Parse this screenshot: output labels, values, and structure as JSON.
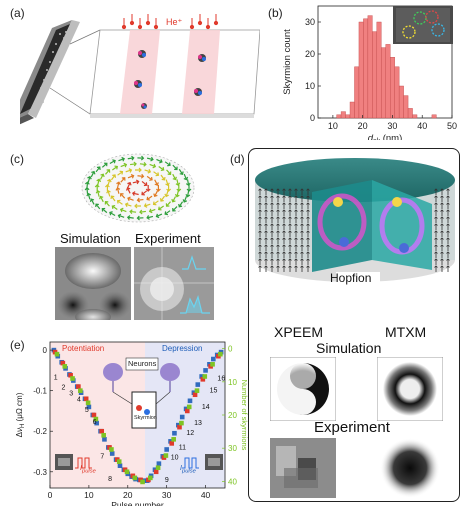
{
  "panels": {
    "a": "(a)",
    "b": "(b)",
    "c": "(c)",
    "d": "(d)",
    "e": "(e)"
  },
  "panel_a": {
    "ion_label": "He⁺"
  },
  "panel_c": {
    "simulation_label": "Simulation",
    "experiment_label": "Experiment"
  },
  "panel_d": {
    "hopfion_label": "Hopfion",
    "xpeem_label": "XPEEM",
    "mtxm_label": "MTXM",
    "simulation_label": "Simulation",
    "experiment_label": "Experiment"
  },
  "panel_e": {
    "potentiation_label": "Potentiation",
    "depression_label": "Depression",
    "neurons_label": "Neurons",
    "skyrmion_label": "Skyrmion",
    "ipulse_left": "I",
    "ipulse_right": "I",
    "ipulse_sub": "pulse",
    "point_labels_left": [
      "1",
      "2",
      "3",
      "4",
      "5",
      "6",
      "7",
      "8"
    ],
    "point_labels_right": [
      "9",
      "10",
      "11",
      "12",
      "13",
      "14",
      "15",
      "16"
    ]
  },
  "chart_data": [
    {
      "type": "bar",
      "xlabel": "d_sk (nm)",
      "ylabel": "Skyrmion count",
      "xlim": [
        5,
        50
      ],
      "ylim": [
        0,
        35
      ],
      "xticks": [
        "10",
        "20",
        "30",
        "40",
        "50"
      ],
      "yticks": [
        "0",
        "10",
        "20",
        "30"
      ],
      "bin_width": 1.5,
      "bins": [
        {
          "x": 12.0,
          "count": 1
        },
        {
          "x": 13.5,
          "count": 2
        },
        {
          "x": 15.0,
          "count": 1
        },
        {
          "x": 16.5,
          "count": 5
        },
        {
          "x": 18.0,
          "count": 16
        },
        {
          "x": 19.5,
          "count": 30
        },
        {
          "x": 21.0,
          "count": 31
        },
        {
          "x": 22.5,
          "count": 32
        },
        {
          "x": 24.0,
          "count": 27
        },
        {
          "x": 25.5,
          "count": 30
        },
        {
          "x": 27.0,
          "count": 22
        },
        {
          "x": 28.5,
          "count": 23
        },
        {
          "x": 30.0,
          "count": 19
        },
        {
          "x": 31.5,
          "count": 16
        },
        {
          "x": 33.0,
          "count": 10
        },
        {
          "x": 34.5,
          "count": 7
        },
        {
          "x": 36.0,
          "count": 3
        },
        {
          "x": 37.5,
          "count": 1
        },
        {
          "x": 44.0,
          "count": 1
        }
      ],
      "bar_color": "#f08080"
    },
    {
      "type": "scatter",
      "xlabel": "Pulse number",
      "ylabel": "ΔV_H (μΩ cm)",
      "ylabel_right": "Number of skyrmions",
      "xlim": [
        0,
        45
      ],
      "ylim": [
        -0.34,
        0.02
      ],
      "ylim_right": [
        -2,
        42
      ],
      "xticks": [
        "0",
        "10",
        "20",
        "30",
        "40"
      ],
      "yticks": [
        "0",
        "-0.1",
        "-0.2",
        "-0.3"
      ],
      "yticks_right": [
        "0",
        "10",
        "20",
        "30",
        "40"
      ],
      "series": [
        {
          "name": "",
          "color": "#1d5db8",
          "x": [
            1,
            2,
            3,
            4,
            5,
            6,
            7,
            8,
            9,
            10,
            11,
            12,
            13,
            14,
            15,
            16,
            17,
            18,
            19,
            20,
            21,
            22,
            23,
            24,
            25,
            26,
            27,
            28,
            29,
            30,
            31,
            32,
            33,
            34,
            35,
            36,
            37,
            38,
            39,
            40,
            41,
            42,
            43,
            44
          ],
          "y": [
            0,
            -0.015,
            -0.03,
            -0.045,
            -0.06,
            -0.075,
            -0.09,
            -0.105,
            -0.12,
            -0.14,
            -0.16,
            -0.18,
            -0.2,
            -0.22,
            -0.24,
            -0.255,
            -0.27,
            -0.285,
            -0.295,
            -0.305,
            -0.312,
            -0.318,
            -0.32,
            -0.322,
            -0.322,
            -0.31,
            -0.295,
            -0.28,
            -0.262,
            -0.245,
            -0.225,
            -0.205,
            -0.185,
            -0.165,
            -0.145,
            -0.125,
            -0.105,
            -0.085,
            -0.065,
            -0.05,
            -0.035,
            -0.022,
            -0.012,
            -0.005
          ]
        },
        {
          "name": "",
          "color": "#e03a2c",
          "x": [
            1.3,
            3.3,
            5.3,
            7.3,
            9.3,
            11.3,
            13.3,
            15.3,
            17.3,
            19.3,
            21.3,
            23.3,
            25.3,
            27.3,
            29.3,
            31.3,
            33.3,
            35.3,
            37.3,
            39.3,
            41.3,
            43.3
          ],
          "y": [
            -0.005,
            -0.032,
            -0.062,
            -0.09,
            -0.12,
            -0.16,
            -0.2,
            -0.24,
            -0.27,
            -0.295,
            -0.31,
            -0.32,
            -0.32,
            -0.3,
            -0.265,
            -0.23,
            -0.19,
            -0.15,
            -0.11,
            -0.072,
            -0.04,
            -0.015
          ]
        },
        {
          "name": "",
          "color": "#7ec424",
          "x": [
            1.8,
            3.8,
            5.8,
            7.8,
            9.8,
            11.8,
            13.8,
            15.8,
            17.8,
            19.8,
            21.8,
            23.8,
            25.8,
            27.8,
            29.8,
            31.8,
            33.8,
            35.8,
            37.8,
            39.8,
            41.8,
            43.8
          ],
          "y": [
            -0.01,
            -0.04,
            -0.07,
            -0.1,
            -0.13,
            -0.17,
            -0.21,
            -0.245,
            -0.275,
            -0.3,
            -0.315,
            -0.325,
            -0.315,
            -0.29,
            -0.26,
            -0.22,
            -0.18,
            -0.14,
            -0.1,
            -0.065,
            -0.035,
            -0.01
          ]
        }
      ]
    }
  ]
}
